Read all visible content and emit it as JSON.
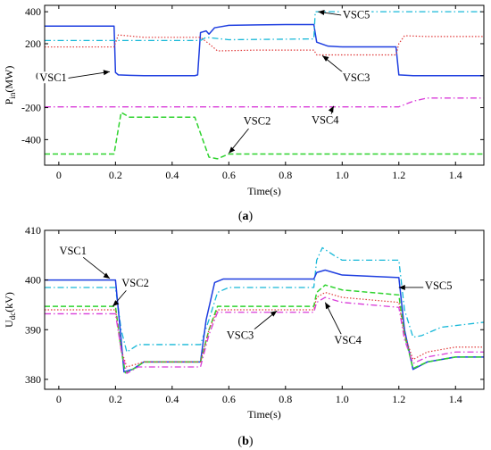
{
  "chart_data": [
    {
      "type": "line",
      "caption": "(a)",
      "xlabel": "Time(s)",
      "ylabel": "P",
      "ylabel_sub": "in",
      "ylabel_unit": "(MW)",
      "xlim": [
        -0.05,
        1.5
      ],
      "ylim": [
        -560,
        440
      ],
      "xticks": [
        0,
        0.2,
        0.4,
        0.6,
        0.8,
        1.0,
        1.2,
        1.4
      ],
      "xtick_labels": [
        "0",
        "0.2",
        "0.4",
        "0.6",
        "0.8",
        "1.0",
        "1.2",
        "1.4"
      ],
      "yticks": [
        400,
        200,
        0,
        -200,
        -400
      ],
      "ytick_labels": [
        "400",
        "200",
        "0",
        "-200",
        "-400"
      ],
      "grid": false,
      "series": [
        {
          "name": "VSC1",
          "color": "#1f3fe0",
          "dash": "",
          "width": 1.5,
          "points": [
            [
              -0.05,
              310
            ],
            [
              0.195,
              310
            ],
            [
              0.197,
              200
            ],
            [
              0.2,
              20
            ],
            [
              0.21,
              5
            ],
            [
              0.25,
              2
            ],
            [
              0.3,
              0
            ],
            [
              0.48,
              0
            ],
            [
              0.49,
              5
            ],
            [
              0.5,
              270
            ],
            [
              0.52,
              280
            ],
            [
              0.53,
              260
            ],
            [
              0.55,
              300
            ],
            [
              0.6,
              315
            ],
            [
              0.7,
              318
            ],
            [
              0.8,
              320
            ],
            [
              0.9,
              320
            ],
            [
              0.91,
              210
            ],
            [
              0.95,
              185
            ],
            [
              1.0,
              180
            ],
            [
              1.19,
              180
            ],
            [
              1.2,
              5
            ],
            [
              1.25,
              0
            ],
            [
              1.5,
              0
            ]
          ]
        },
        {
          "name": "VSC3",
          "color": "#e03a3a",
          "dash": "1.5,2",
          "width": 1.2,
          "points": [
            [
              -0.05,
              180
            ],
            [
              0.195,
              180
            ],
            [
              0.21,
              255
            ],
            [
              0.3,
              240
            ],
            [
              0.5,
              240
            ],
            [
              0.53,
              200
            ],
            [
              0.56,
              155
            ],
            [
              0.7,
              160
            ],
            [
              0.9,
              160
            ],
            [
              0.91,
              130
            ],
            [
              1.0,
              130
            ],
            [
              1.19,
              130
            ],
            [
              1.2,
              200
            ],
            [
              1.22,
              250
            ],
            [
              1.3,
              245
            ],
            [
              1.5,
              245
            ]
          ]
        },
        {
          "name": "VSC5",
          "color": "#17b8d8",
          "dash": "7,3,1.5,3",
          "width": 1.3,
          "points": [
            [
              -0.05,
              220
            ],
            [
              0.5,
              220
            ],
            [
              0.52,
              240
            ],
            [
              0.6,
              225
            ],
            [
              0.9,
              230
            ],
            [
              0.905,
              400
            ],
            [
              1.5,
              400
            ]
          ]
        },
        {
          "name": "VSC4",
          "color": "#d93bd9",
          "dash": "7,3,1.5,3",
          "width": 1.3,
          "points": [
            [
              -0.05,
              -195
            ],
            [
              1.2,
              -195
            ],
            [
              1.25,
              -160
            ],
            [
              1.3,
              -140
            ],
            [
              1.5,
              -140
            ]
          ]
        },
        {
          "name": "VSC2",
          "color": "#2ed32e",
          "dash": "6,3",
          "width": 1.5,
          "points": [
            [
              -0.05,
              -490
            ],
            [
              0.195,
              -490
            ],
            [
              0.22,
              -230
            ],
            [
              0.25,
              -260
            ],
            [
              0.48,
              -260
            ],
            [
              0.53,
              -510
            ],
            [
              0.56,
              -520
            ],
            [
              0.6,
              -490
            ],
            [
              1.5,
              -490
            ]
          ]
        }
      ],
      "annotations": [
        {
          "label": "VSC5",
          "x": 1.05,
          "y": 370,
          "tx": 0.915,
          "ty": 400
        },
        {
          "label": "VSC3",
          "x": 1.05,
          "y": -25,
          "tx": 0.93,
          "ty": 125
        },
        {
          "label": "VSC1",
          "x": -0.02,
          "y": -25,
          "tx": 0.18,
          "ty": 25
        },
        {
          "label": "VSC2",
          "x": 0.7,
          "y": -295,
          "tx": 0.6,
          "ty": -485
        },
        {
          "label": "VSC4",
          "x": 0.94,
          "y": -290,
          "tx": 0.97,
          "ty": -190
        }
      ]
    },
    {
      "type": "line",
      "caption": "(b)",
      "xlabel": "Time(s)",
      "ylabel": "U",
      "ylabel_sub": "dc",
      "ylabel_unit": "(kV)",
      "xlim": [
        -0.05,
        1.5
      ],
      "ylim": [
        378,
        410
      ],
      "xticks": [
        0,
        0.2,
        0.4,
        0.6,
        0.8,
        1.0,
        1.2,
        1.4
      ],
      "xtick_labels": [
        "0",
        "0.2",
        "0.4",
        "0.6",
        "0.8",
        "1.0",
        "1.2",
        "1.4"
      ],
      "yticks": [
        410,
        400,
        390,
        380
      ],
      "ytick_labels": [
        "410",
        "400",
        "390",
        "380"
      ],
      "grid": false,
      "series": [
        {
          "name": "VSC5",
          "color": "#17b8d8",
          "dash": "7,3,1.5,3",
          "width": 1.3,
          "points": [
            [
              -0.05,
              398.5
            ],
            [
              0.2,
              398.5
            ],
            [
              0.22,
              390
            ],
            [
              0.24,
              385.5
            ],
            [
              0.28,
              387
            ],
            [
              0.5,
              387
            ],
            [
              0.53,
              392
            ],
            [
              0.56,
              397.5
            ],
            [
              0.6,
              398.5
            ],
            [
              0.9,
              398.5
            ],
            [
              0.91,
              404
            ],
            [
              0.93,
              406.5
            ],
            [
              0.97,
              405
            ],
            [
              1.0,
              404
            ],
            [
              1.2,
              404
            ],
            [
              1.22,
              394
            ],
            [
              1.25,
              388.5
            ],
            [
              1.28,
              388.8
            ],
            [
              1.35,
              390.5
            ],
            [
              1.5,
              391.5
            ]
          ]
        },
        {
          "name": "VSC1",
          "color": "#1f3fe0",
          "dash": "",
          "width": 1.5,
          "points": [
            [
              -0.05,
              400
            ],
            [
              0.2,
              400
            ],
            [
              0.22,
              388
            ],
            [
              0.23,
              381.5
            ],
            [
              0.26,
              382
            ],
            [
              0.3,
              383.5
            ],
            [
              0.5,
              383.5
            ],
            [
              0.52,
              392
            ],
            [
              0.55,
              399.5
            ],
            [
              0.58,
              400.2
            ],
            [
              0.9,
              400.2
            ],
            [
              0.91,
              401.5
            ],
            [
              0.94,
              402
            ],
            [
              1.0,
              401
            ],
            [
              1.2,
              400.5
            ],
            [
              1.22,
              390
            ],
            [
              1.25,
              382
            ],
            [
              1.3,
              383.5
            ],
            [
              1.4,
              384.5
            ],
            [
              1.5,
              384.5
            ]
          ]
        },
        {
          "name": "VSC2",
          "color": "#2ed32e",
          "dash": "6,3",
          "width": 1.5,
          "points": [
            [
              -0.05,
              394.7
            ],
            [
              0.2,
              394.7
            ],
            [
              0.22,
              386
            ],
            [
              0.235,
              381.3
            ],
            [
              0.27,
              382.3
            ],
            [
              0.3,
              383.5
            ],
            [
              0.5,
              383.5
            ],
            [
              0.53,
              390
            ],
            [
              0.56,
              394.7
            ],
            [
              0.9,
              394.7
            ],
            [
              0.91,
              397.5
            ],
            [
              0.94,
              399
            ],
            [
              1.0,
              398
            ],
            [
              1.2,
              397
            ],
            [
              1.22,
              389
            ],
            [
              1.25,
              382.2
            ],
            [
              1.3,
              383.5
            ],
            [
              1.4,
              384.5
            ],
            [
              1.5,
              384.5
            ]
          ]
        },
        {
          "name": "VSC3",
          "color": "#e03a3a",
          "dash": "1.5,2",
          "width": 1.2,
          "points": [
            [
              -0.05,
              394
            ],
            [
              0.2,
              394
            ],
            [
              0.22,
              386
            ],
            [
              0.24,
              382.5
            ],
            [
              0.3,
              383.5
            ],
            [
              0.5,
              383.5
            ],
            [
              0.53,
              390
            ],
            [
              0.56,
              394
            ],
            [
              0.9,
              394
            ],
            [
              0.91,
              396.5
            ],
            [
              0.94,
              397.5
            ],
            [
              1.0,
              396.5
            ],
            [
              1.2,
              395.5
            ],
            [
              1.22,
              389
            ],
            [
              1.25,
              384
            ],
            [
              1.3,
              385.5
            ],
            [
              1.4,
              386.5
            ],
            [
              1.5,
              386.5
            ]
          ]
        },
        {
          "name": "VSC4",
          "color": "#d93bd9",
          "dash": "7,3,1.5,3",
          "width": 1.3,
          "points": [
            [
              -0.05,
              393.2
            ],
            [
              0.2,
              393.2
            ],
            [
              0.22,
              386
            ],
            [
              0.24,
              381.2
            ],
            [
              0.28,
              382.5
            ],
            [
              0.5,
              382.5
            ],
            [
              0.53,
              389
            ],
            [
              0.56,
              393.5
            ],
            [
              0.9,
              393.5
            ],
            [
              0.91,
              395.5
            ],
            [
              0.94,
              396.5
            ],
            [
              1.0,
              395.5
            ],
            [
              1.2,
              394.5
            ],
            [
              1.22,
              388
            ],
            [
              1.25,
              383.2
            ],
            [
              1.3,
              384.5
            ],
            [
              1.4,
              385.5
            ],
            [
              1.5,
              385.5
            ]
          ]
        }
      ],
      "annotations": [
        {
          "label": "VSC1",
          "x": 0.05,
          "y": 405.5,
          "tx": 0.18,
          "ty": 400.3
        },
        {
          "label": "VSC2",
          "x": 0.27,
          "y": 399,
          "tx": 0.19,
          "ty": 394.7
        },
        {
          "label": "VSC3",
          "x": 0.64,
          "y": 388.5,
          "tx": 0.77,
          "ty": 393.8
        },
        {
          "label": "VSC4",
          "x": 1.02,
          "y": 387.5,
          "tx": 0.94,
          "ty": 395.5
        },
        {
          "label": "VSC5",
          "x": 1.34,
          "y": 398.5,
          "tx": 1.2,
          "ty": 398.5
        }
      ]
    }
  ]
}
